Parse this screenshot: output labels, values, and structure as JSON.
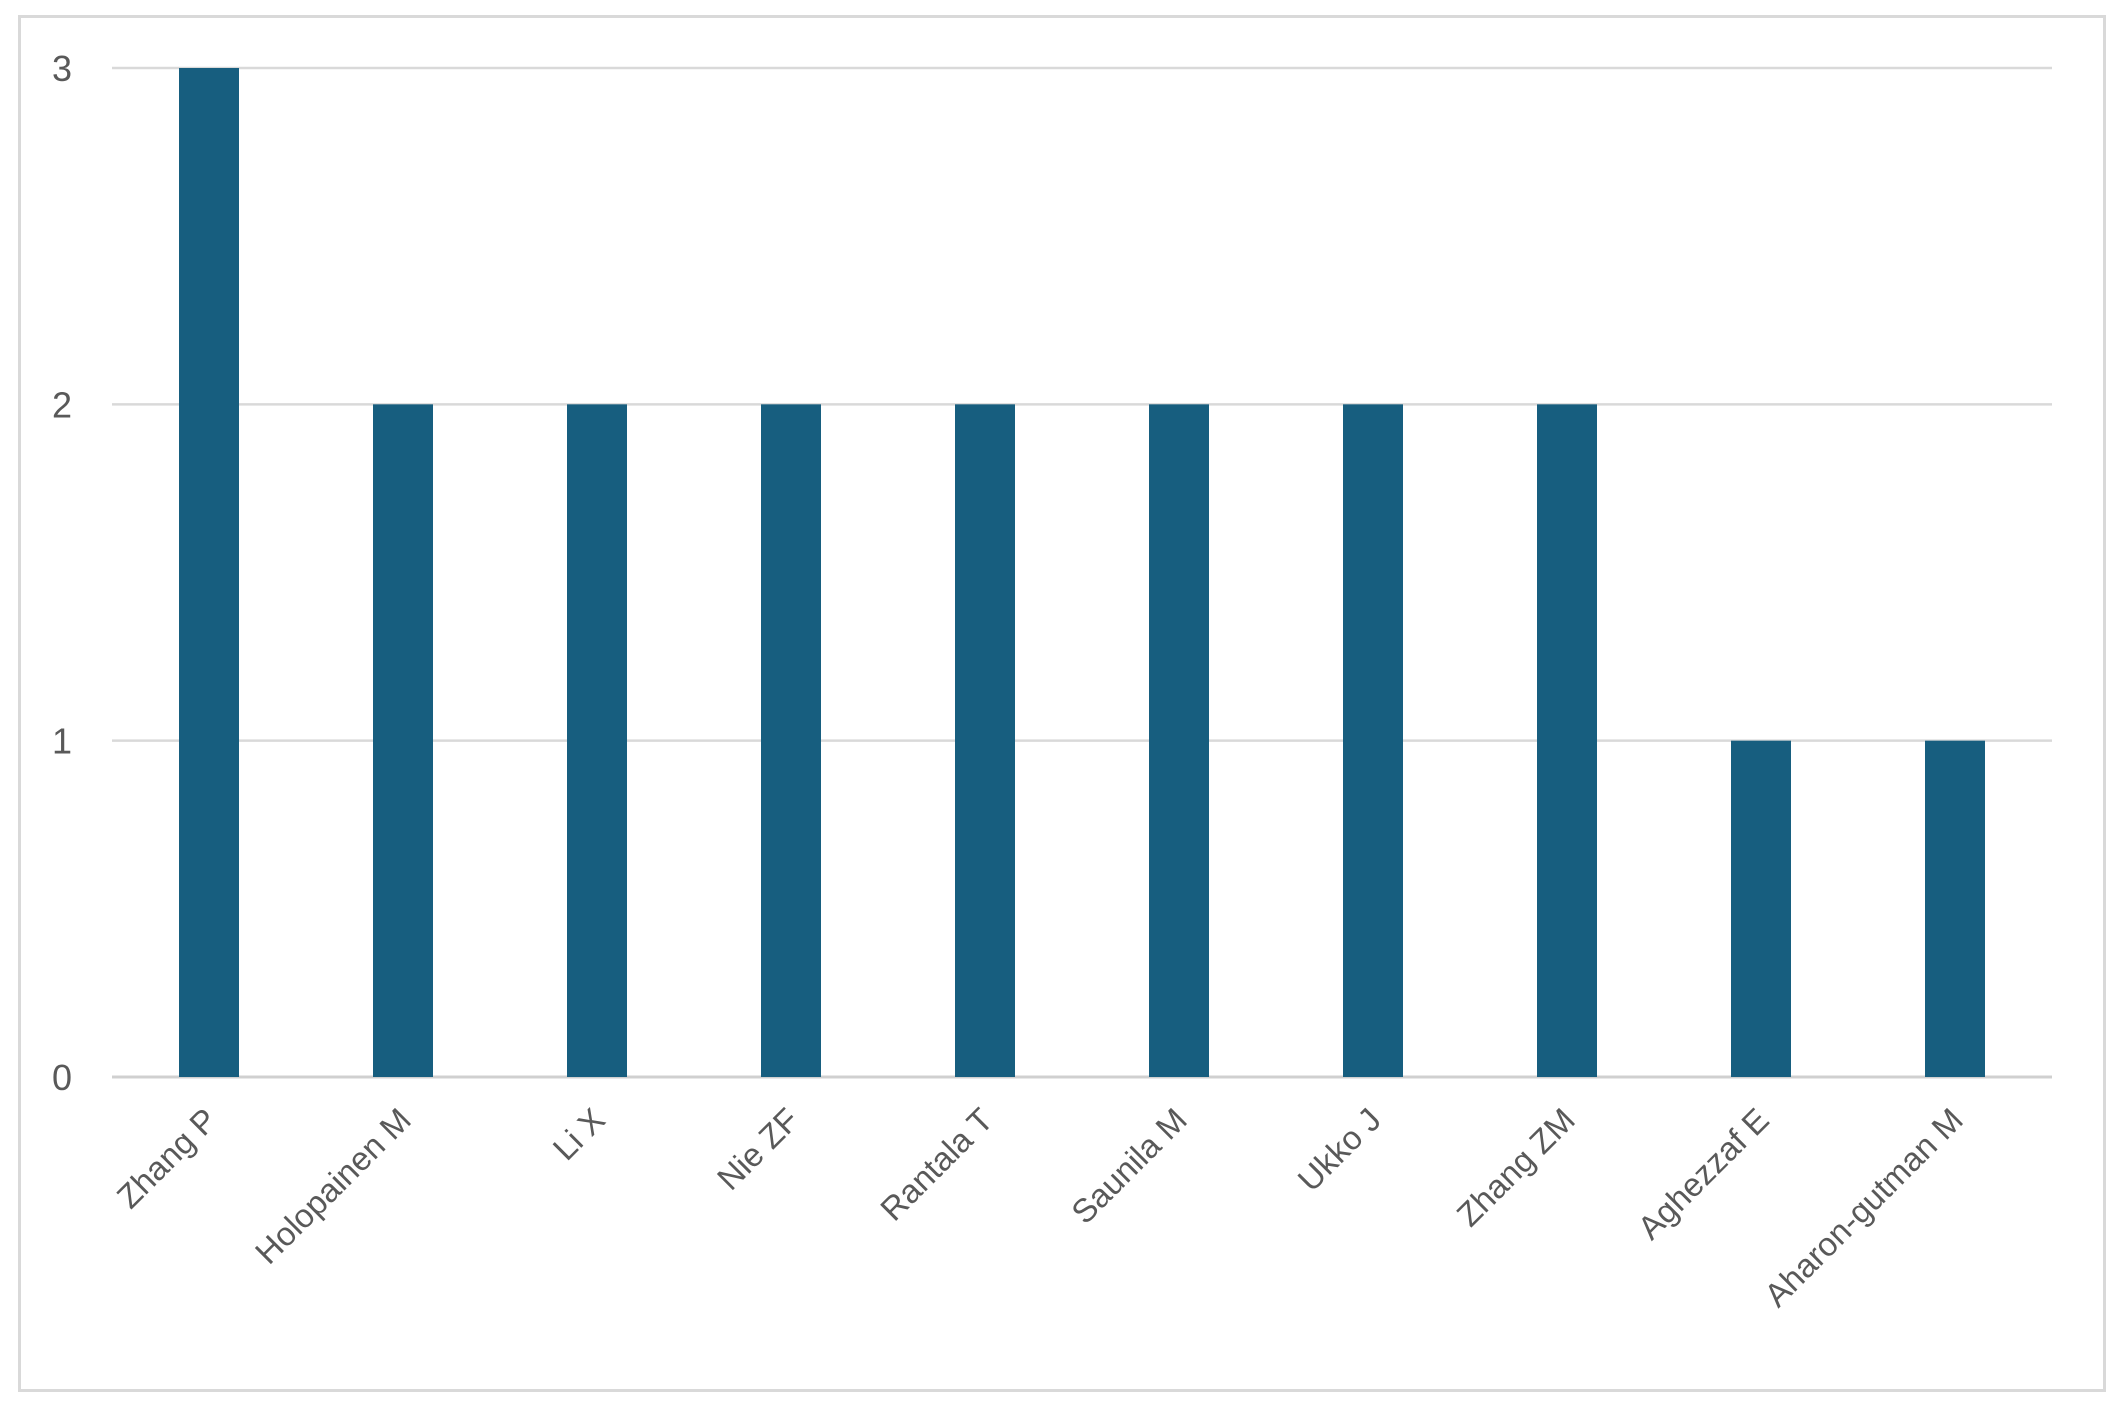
{
  "chart_data": {
    "type": "bar",
    "categories": [
      "Zhang P",
      "Holopainen M",
      "Li X",
      "Nie ZF",
      "Rantala T",
      "Saunila M",
      "Ukko J",
      "Zhang ZM",
      "Aghezzaf E",
      "Aharon-gutman M"
    ],
    "values": [
      3,
      2,
      2,
      2,
      2,
      2,
      2,
      2,
      1,
      1
    ],
    "title": "",
    "xlabel": "",
    "ylabel": "",
    "ylim": [
      0,
      3
    ],
    "yticks": [
      "0",
      "1",
      "2",
      "3"
    ],
    "grid": true,
    "legend": "none",
    "bar_color": "#175E7F",
    "grid_color": "#d9d9d9"
  }
}
